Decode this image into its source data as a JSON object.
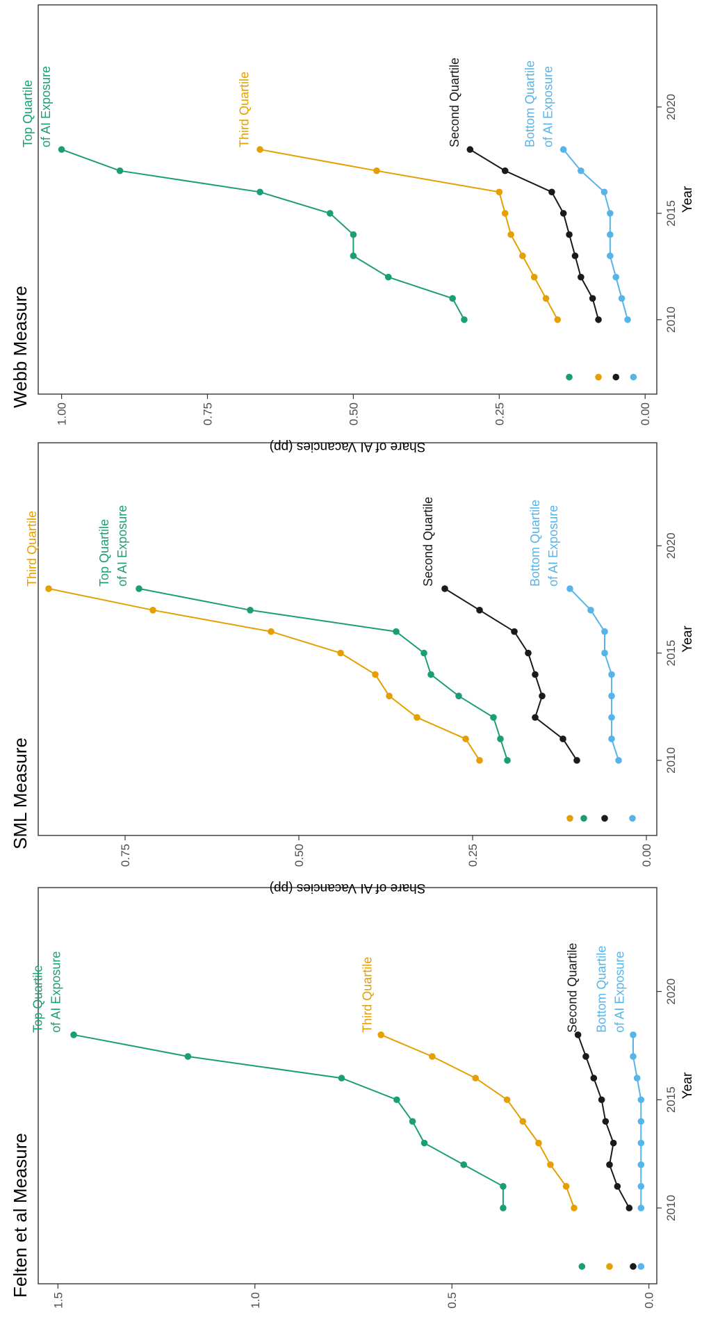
{
  "chart_data": [
    {
      "type": "line",
      "title": "Felten et al Measure",
      "xlabel": "Year",
      "ylabel": "Share of AI Vacancies (pp)",
      "xlim": [
        2006.5,
        2024.8
      ],
      "ylim": [
        -0.02,
        1.55
      ],
      "xticks": [
        2010,
        2015,
        2020
      ],
      "yticks": [
        0.0,
        0.5,
        1.0,
        1.5
      ],
      "ytick_labels": [
        "0.0",
        "0.5",
        "1.0",
        "1.5"
      ],
      "grid": false,
      "x": [
        2010,
        2011,
        2012,
        2013,
        2014,
        2015,
        2016,
        2017,
        2018
      ],
      "series": [
        {
          "key": "top",
          "values": [
            0.37,
            0.37,
            0.47,
            0.57,
            0.6,
            0.64,
            0.78,
            1.17,
            1.46
          ],
          "start_marker": 0.17,
          "labels": [
            "Top Quartile",
            "of AI Exposure"
          ]
        },
        {
          "key": "third",
          "values": [
            0.19,
            0.21,
            0.25,
            0.28,
            0.32,
            0.36,
            0.44,
            0.55,
            0.68
          ],
          "start_marker": 0.1,
          "labels": [
            "Third Quartile"
          ]
        },
        {
          "key": "second",
          "values": [
            0.05,
            0.08,
            0.1,
            0.09,
            0.11,
            0.12,
            0.14,
            0.16,
            0.18
          ],
          "start_marker": 0.04,
          "labels": [
            "Second Quartile"
          ]
        },
        {
          "key": "bottom",
          "values": [
            0.02,
            0.02,
            0.02,
            0.02,
            0.02,
            0.02,
            0.03,
            0.04,
            0.04
          ],
          "start_marker": 0.02,
          "labels": [
            "Bottom Quartile",
            "of AI Exposure"
          ]
        }
      ]
    },
    {
      "type": "line",
      "title": "SML Measure",
      "xlabel": "Year",
      "ylabel": "Share of AI Vacancies (pp)",
      "xlim": [
        2006.5,
        2024.8
      ],
      "ylim": [
        -0.015,
        0.875
      ],
      "xticks": [
        2010,
        2015,
        2020
      ],
      "yticks": [
        0.0,
        0.25,
        0.5,
        0.75
      ],
      "ytick_labels": [
        "0.00",
        "0.25",
        "0.50",
        "0.75"
      ],
      "grid": false,
      "x": [
        2010,
        2011,
        2012,
        2013,
        2014,
        2015,
        2016,
        2017,
        2018
      ],
      "series": [
        {
          "key": "third",
          "values": [
            0.24,
            0.26,
            0.33,
            0.37,
            0.39,
            0.44,
            0.54,
            0.71,
            0.86
          ],
          "start_marker": 0.11,
          "labels": [
            "Third Quartile"
          ]
        },
        {
          "key": "top",
          "values": [
            0.2,
            0.21,
            0.22,
            0.27,
            0.31,
            0.32,
            0.36,
            0.57,
            0.73
          ],
          "start_marker": 0.09,
          "labels": [
            "Top Quartile",
            "of AI Exposure"
          ]
        },
        {
          "key": "second",
          "values": [
            0.1,
            0.12,
            0.16,
            0.15,
            0.16,
            0.17,
            0.19,
            0.24,
            0.29
          ],
          "start_marker": 0.06,
          "labels": [
            "Second Quartile"
          ]
        },
        {
          "key": "bottom",
          "values": [
            0.04,
            0.05,
            0.05,
            0.05,
            0.05,
            0.06,
            0.06,
            0.08,
            0.11
          ],
          "start_marker": 0.02,
          "labels": [
            "Bottom Quartile",
            "of AI Exposure"
          ]
        }
      ]
    },
    {
      "type": "line",
      "title": "Webb Measure",
      "xlabel": "Year",
      "ylabel": "Share of AI Vacancies (pp)",
      "xlim": [
        2006.5,
        2024.8
      ],
      "ylim": [
        -0.02,
        1.04
      ],
      "xticks": [
        2010,
        2015,
        2020
      ],
      "yticks": [
        0.0,
        0.25,
        0.5,
        0.75,
        1.0
      ],
      "ytick_labels": [
        "0.00",
        "0.25",
        "0.50",
        "0.75",
        "1.00"
      ],
      "grid": false,
      "x": [
        2010,
        2011,
        2012,
        2013,
        2014,
        2015,
        2016,
        2017,
        2018
      ],
      "series": [
        {
          "key": "top",
          "values": [
            0.31,
            0.33,
            0.44,
            0.5,
            0.5,
            0.54,
            0.66,
            0.9,
            1.0
          ],
          "start_marker": 0.13,
          "labels": [
            "Top Quartile",
            "of AI Exposure"
          ]
        },
        {
          "key": "third",
          "values": [
            0.15,
            0.17,
            0.19,
            0.21,
            0.23,
            0.24,
            0.25,
            0.46,
            0.66
          ],
          "start_marker": 0.08,
          "labels": [
            "Third Quartile"
          ]
        },
        {
          "key": "second",
          "values": [
            0.08,
            0.09,
            0.11,
            0.12,
            0.13,
            0.14,
            0.16,
            0.24,
            0.3
          ],
          "start_marker": 0.05,
          "labels": [
            "Second Quartile"
          ]
        },
        {
          "key": "bottom",
          "values": [
            0.03,
            0.04,
            0.05,
            0.06,
            0.06,
            0.06,
            0.07,
            0.11,
            0.14
          ],
          "start_marker": 0.02,
          "labels": [
            "Bottom Quartile",
            "of AI Exposure"
          ]
        }
      ]
    }
  ],
  "colors": {
    "top": "#1b9e77",
    "third": "#e69f00",
    "second": "#1a1a1a",
    "bottom": "#56b4e9",
    "axis": "#333333",
    "tick_label": "#4d4d4d"
  }
}
